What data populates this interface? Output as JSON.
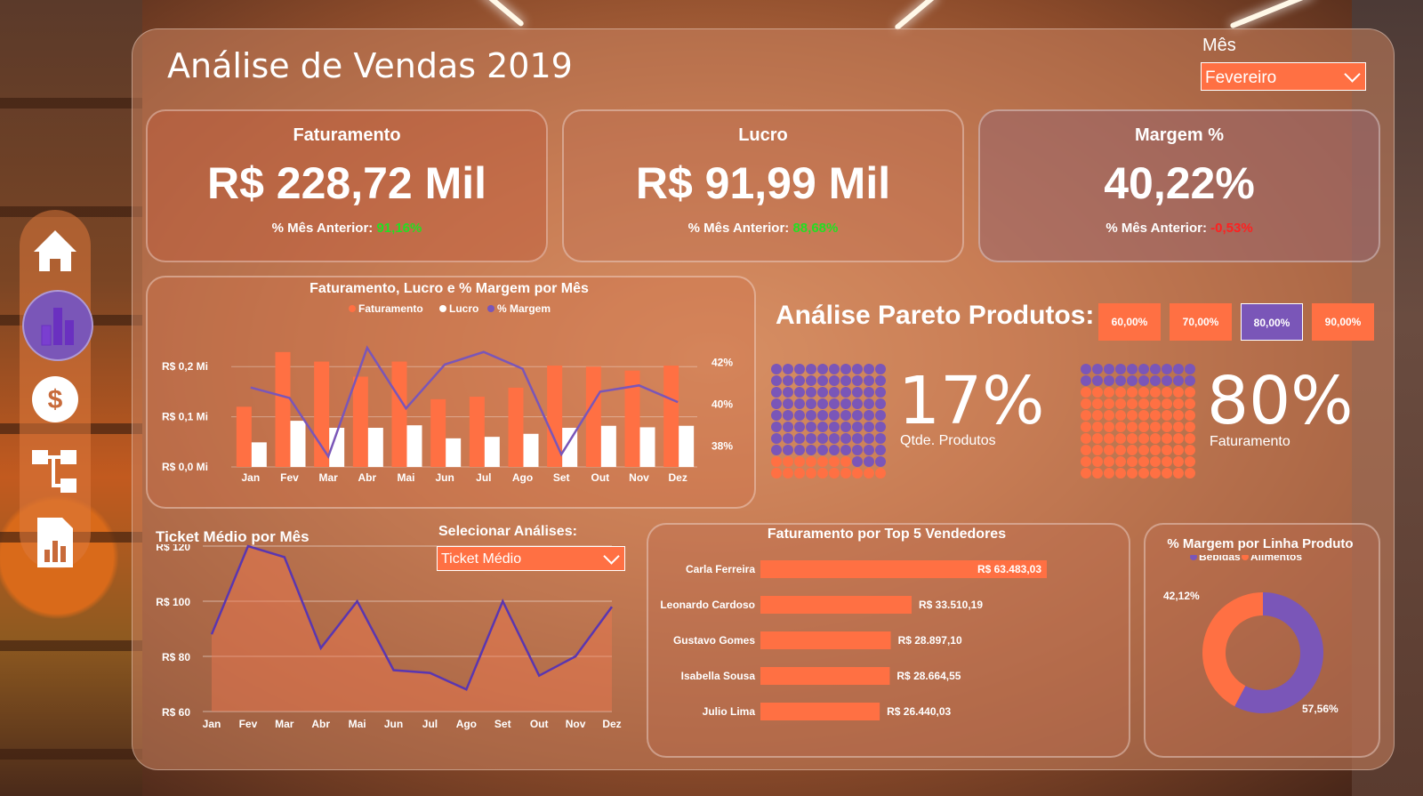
{
  "title": "Análise de Vendas 2019",
  "filter": {
    "label": "Mês",
    "value": "Fevereiro"
  },
  "kpis": [
    {
      "title": "Faturamento",
      "value": "R$ 228,72 Mil",
      "sub_label": "% Mês Anterior:",
      "sub_value": "91,16%",
      "sub_color": "#22e022"
    },
    {
      "title": "Lucro",
      "value": "R$ 91,99 Mil",
      "sub_label": "% Mês Anterior:",
      "sub_value": "88,68%",
      "sub_color": "#22e022"
    },
    {
      "title": "Margem %",
      "value": "40,22%",
      "sub_label": "% Mês Anterior:",
      "sub_value": "-0,53%",
      "sub_color": "#ff2020"
    }
  ],
  "nav": [
    "home-icon",
    "bar-chart-icon",
    "dollar-icon",
    "hierarchy-icon",
    "report-icon"
  ],
  "colors": {
    "accent": "#ff7043",
    "purple": "#7a56b8",
    "white": "#ffffff"
  },
  "pareto": {
    "title": "Análise Pareto Produtos:",
    "buttons": [
      "60,00%",
      "70,00%",
      "80,00%",
      "90,00%"
    ],
    "selected": "80,00%",
    "products_pct": "17%",
    "products_label": "Qtde. Produtos",
    "revenue_pct": "80%",
    "revenue_label": "Faturamento"
  },
  "ticket": {
    "title": "Ticket Médio por Mês",
    "select_label": "Selecionar Análises:",
    "select_value": "Ticket Médio"
  },
  "chart_data": [
    {
      "type": "bar",
      "title": "Faturamento, Lucro e % Margem por Mês",
      "legend": [
        "Faturamento",
        "Lucro",
        "% Margem"
      ],
      "categories": [
        "Jan",
        "Fev",
        "Mar",
        "Abr",
        "Mai",
        "Jun",
        "Jul",
        "Ago",
        "Set",
        "Out",
        "Nov",
        "Dez"
      ],
      "y_ticks": [
        "R$ 0,0 Mi",
        "R$ 0,1 Mi",
        "R$ 0,2 Mi"
      ],
      "y2_ticks": [
        "38%",
        "40%",
        "42%"
      ],
      "ylim": [
        0,
        0.25
      ],
      "y2lim": [
        37,
        43
      ],
      "series": [
        {
          "name": "Faturamento",
          "values": [
            0.12,
            0.229,
            0.21,
            0.18,
            0.21,
            0.135,
            0.14,
            0.158,
            0.202,
            0.2,
            0.192,
            0.202
          ]
        },
        {
          "name": "Lucro",
          "values": [
            0.049,
            0.092,
            0.078,
            0.078,
            0.083,
            0.057,
            0.06,
            0.066,
            0.078,
            0.082,
            0.079,
            0.082
          ]
        },
        {
          "name": "% Margem",
          "values": [
            40.8,
            40.3,
            37.5,
            42.7,
            39.8,
            41.9,
            42.5,
            41.7,
            37.6,
            40.6,
            40.9,
            40.1
          ]
        }
      ]
    },
    {
      "type": "area",
      "title": "Ticket Médio por Mês",
      "categories": [
        "Jan",
        "Fev",
        "Mar",
        "Abr",
        "Mai",
        "Jun",
        "Jul",
        "Ago",
        "Set",
        "Out",
        "Nov",
        "Dez"
      ],
      "y_ticks": [
        "R$ 60",
        "R$ 80",
        "R$ 100",
        "R$ 120"
      ],
      "ylim": [
        60,
        120
      ],
      "series": [
        {
          "values": [
            88,
            120,
            116,
            83,
            100,
            75,
            74,
            68,
            100,
            73,
            80,
            98
          ]
        }
      ]
    },
    {
      "type": "bar",
      "orientation": "horizontal",
      "title": "Faturamento por Top 5 Vendedores",
      "categories": [
        "Carla Ferreira",
        "Leonardo Cardoso",
        "Gustavo Gomes",
        "Isabella Sousa",
        "Julio Lima"
      ],
      "values": [
        63483.03,
        33510.19,
        28897.1,
        28664.55,
        26440.03
      ],
      "labels": [
        "R$ 63.483,03",
        "R$ 33.510,19",
        "R$ 28.897,10",
        "R$ 28.664,55",
        "R$ 26.440,03"
      ]
    },
    {
      "type": "pie",
      "title": "% Margem por Linha Produto",
      "legend": [
        "Bebidas",
        "Alimentos"
      ],
      "values": [
        57.56,
        42.12
      ],
      "labels": [
        "57,56%",
        "42,12%"
      ]
    }
  ]
}
